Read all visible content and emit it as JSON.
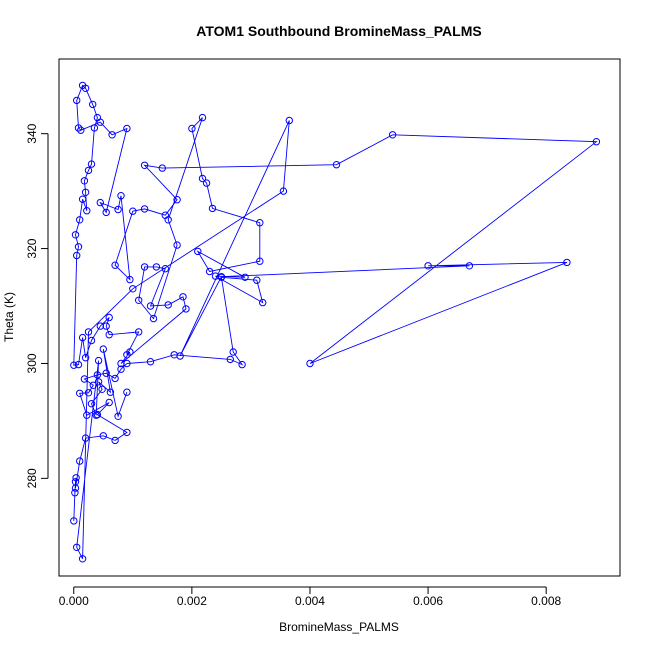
{
  "chart_data": {
    "type": "line",
    "title": "ATOM1 Southbound BromineMass_PALMS",
    "xlabel": "BromineMass_PALMS",
    "ylabel": "Theta (K)",
    "xlim": [
      -0.00025,
      0.00925
    ],
    "ylim": [
      263,
      353
    ],
    "x_ticks": [
      0,
      0.002,
      0.004,
      0.006,
      0.008
    ],
    "x_tick_labels": [
      "0.000",
      "0.002",
      "0.004",
      "0.006",
      "0.008"
    ],
    "y_ticks": [
      280,
      300,
      320,
      340
    ],
    "y_tick_labels": [
      "280",
      "300",
      "320",
      "340"
    ],
    "grid": false,
    "series": [
      {
        "marker": "open-circle",
        "color": "#0000ff",
        "points": [
          [
            0.0,
            272.6
          ],
          [
            2e-05,
            277.5
          ],
          [
            3e-05,
            279.4
          ],
          [
            4e-05,
            280.1
          ],
          [
            3e-05,
            278.3
          ],
          [
            0.0001,
            283.0
          ],
          [
            0.0002,
            287.0
          ],
          [
            0.0005,
            287.4
          ],
          [
            0.0007,
            286.6
          ],
          [
            0.0009,
            288.0
          ],
          [
            0.0004,
            291.1
          ],
          [
            0.0006,
            293.2
          ],
          [
            0.00022,
            291.0
          ],
          [
            0.0001,
            294.8
          ],
          [
            0.00025,
            294.9
          ],
          [
            0.00033,
            296.2
          ],
          [
            0.00018,
            297.3
          ],
          [
            0.0004,
            298.0
          ],
          [
            0.00055,
            298.3
          ],
          [
            0.0007,
            297.4
          ],
          [
            0.0008,
            299.0
          ],
          [
            0.0009,
            300.0
          ],
          [
            0.0013,
            300.3
          ],
          [
            0.0017,
            301.5
          ],
          [
            0.00265,
            300.7
          ],
          [
            0.00285,
            299.8
          ],
          [
            0.0027,
            302.0
          ],
          [
            0.0025,
            315.0
          ],
          [
            0.0031,
            314.5
          ],
          [
            0.0032,
            310.6
          ],
          [
            0.0024,
            315.2
          ],
          [
            0.0029,
            315.0
          ],
          [
            0.0021,
            319.5
          ],
          [
            0.0023,
            316.0
          ],
          [
            0.00315,
            317.8
          ],
          [
            0.00315,
            324.5
          ],
          [
            0.00235,
            327.0
          ],
          [
            0.00225,
            331.4
          ],
          [
            0.00218,
            332.2
          ],
          [
            0.002,
            340.9
          ],
          [
            0.00218,
            342.8
          ],
          [
            0.0016,
            325.0
          ],
          [
            0.00175,
            320.6
          ],
          [
            0.00135,
            307.8
          ],
          [
            0.0011,
            311.0
          ],
          [
            0.0012,
            316.8
          ],
          [
            0.0014,
            316.8
          ],
          [
            0.00155,
            316.5
          ],
          [
            0.0013,
            310.0
          ],
          [
            0.0016,
            310.2
          ],
          [
            0.00185,
            311.6
          ],
          [
            0.0019,
            309.5
          ],
          [
            0.0008,
            300.0
          ],
          [
            0.00095,
            302.0
          ],
          [
            0.0009,
            301.5
          ],
          [
            0.0011,
            305.5
          ],
          [
            0.0006,
            305.0
          ],
          [
            0.00055,
            306.5
          ],
          [
            0.0006,
            308.0
          ],
          [
            0.00045,
            306.5
          ],
          [
            0.0003,
            304.0
          ],
          [
            0.0002,
            301.0
          ],
          [
            0.00015,
            304.5
          ],
          [
            8e-05,
            299.8
          ],
          [
            0.0,
            299.7
          ],
          [
            5e-05,
            318.8
          ],
          [
            8e-05,
            320.3
          ],
          [
            3e-05,
            322.4
          ],
          [
            0.0001,
            325.0
          ],
          [
            0.00015,
            328.6
          ],
          [
            0.00022,
            326.6
          ],
          [
            0.0002,
            329.8
          ],
          [
            0.00018,
            331.8
          ],
          [
            0.00025,
            333.6
          ],
          [
            0.0003,
            334.7
          ],
          [
            0.00035,
            341.0
          ],
          [
            0.0004,
            342.8
          ],
          [
            0.00032,
            345.1
          ],
          [
            0.0002,
            347.9
          ],
          [
            0.00015,
            348.4
          ],
          [
            5e-05,
            345.8
          ],
          [
            8e-05,
            341.0
          ],
          [
            0.00012,
            340.6
          ],
          [
            0.00045,
            342.0
          ],
          [
            0.00065,
            339.8
          ],
          [
            0.0009,
            340.9
          ],
          [
            0.00055,
            326.3
          ],
          [
            0.00045,
            328.0
          ],
          [
            0.00075,
            326.8
          ],
          [
            0.0008,
            329.2
          ],
          [
            0.00095,
            314.6
          ],
          [
            0.0007,
            317.1
          ],
          [
            0.001,
            326.5
          ],
          [
            0.0012,
            326.9
          ],
          [
            0.00155,
            325.8
          ],
          [
            0.00175,
            328.5
          ],
          [
            0.0012,
            334.5
          ],
          [
            0.0015,
            334.0
          ],
          [
            0.00445,
            334.6
          ],
          [
            0.0054,
            339.8
          ],
          [
            0.00885,
            338.6
          ],
          [
            0.004,
            300.0
          ],
          [
            0.00835,
            317.6
          ],
          [
            0.006,
            317.0
          ],
          [
            0.0067,
            317.0
          ],
          [
            0.0025,
            315.1
          ],
          [
            0.0018,
            301.3
          ],
          [
            0.00365,
            342.3
          ],
          [
            0.00355,
            330.0
          ],
          [
            0.001,
            313.0
          ],
          [
            0.00025,
            305.5
          ],
          [
            0.00015,
            266.0
          ],
          [
            5e-05,
            268.0
          ],
          [
            0.00042,
            300.5
          ],
          [
            0.00038,
            291.0
          ],
          [
            0.0003,
            293.0
          ],
          [
            0.00048,
            295.5
          ],
          [
            0.00042,
            296.8
          ],
          [
            0.00062,
            295.0
          ],
          [
            0.0005,
            302.5
          ],
          [
            0.00075,
            290.8
          ],
          [
            0.0009,
            295.0
          ]
        ]
      }
    ]
  }
}
